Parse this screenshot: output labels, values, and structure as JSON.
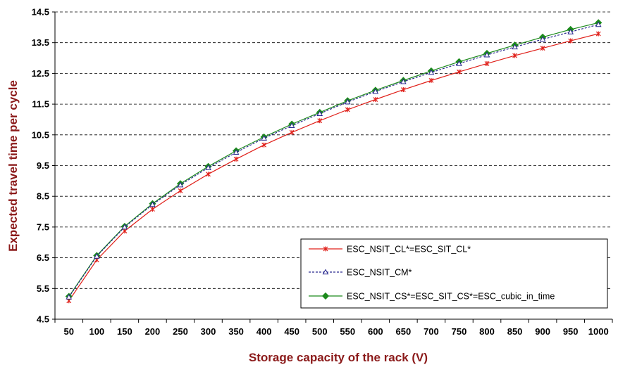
{
  "chart_data": {
    "type": "line",
    "xlabel": "Storage capacity of the rack (V)",
    "ylabel": "Expected travel time per cycle",
    "ylim": [
      4.5,
      14.5
    ],
    "yticks": [
      "4.5",
      "5.5",
      "6.5",
      "7.5",
      "8.5",
      "9.5",
      "10.5",
      "11.5",
      "12.5",
      "13.5",
      "14.5"
    ],
    "categories": [
      "50",
      "100",
      "150",
      "200",
      "250",
      "300",
      "350",
      "400",
      "450",
      "500",
      "550",
      "600",
      "650",
      "700",
      "750",
      "800",
      "850",
      "900",
      "950",
      "1000"
    ],
    "grid": "horizontal dashed",
    "legend_position": "bottom-right",
    "series": [
      {
        "name": "ESC_NSIT_CL*=ESC_SIT_CL*",
        "color": "#e0201a",
        "marker": "star",
        "dashed": false,
        "values": [
          5.1,
          6.43,
          7.37,
          8.08,
          8.68,
          9.22,
          9.71,
          10.17,
          10.58,
          10.96,
          11.32,
          11.65,
          11.97,
          12.27,
          12.55,
          12.82,
          13.08,
          13.32,
          13.56,
          13.79
        ]
      },
      {
        "name": "ESC_NSIT_CM*",
        "color": "#2a2a8f",
        "marker": "triangle",
        "dashed": true,
        "values": [
          5.22,
          6.55,
          7.5,
          8.23,
          8.87,
          9.43,
          9.93,
          10.39,
          10.8,
          11.19,
          11.57,
          11.91,
          12.23,
          12.53,
          12.82,
          13.1,
          13.36,
          13.61,
          13.85,
          14.09
        ]
      },
      {
        "name": "ESC_NSIT_CS*=ESC_SIT_CS*=ESC_cubic_in_time",
        "color": "#1c8a1c",
        "marker": "diamond",
        "dashed": false,
        "values": [
          5.24,
          6.57,
          7.52,
          8.26,
          8.91,
          9.47,
          9.98,
          10.43,
          10.85,
          11.23,
          11.61,
          11.95,
          12.27,
          12.58,
          12.88,
          13.15,
          13.42,
          13.68,
          13.93,
          14.15
        ]
      }
    ]
  }
}
